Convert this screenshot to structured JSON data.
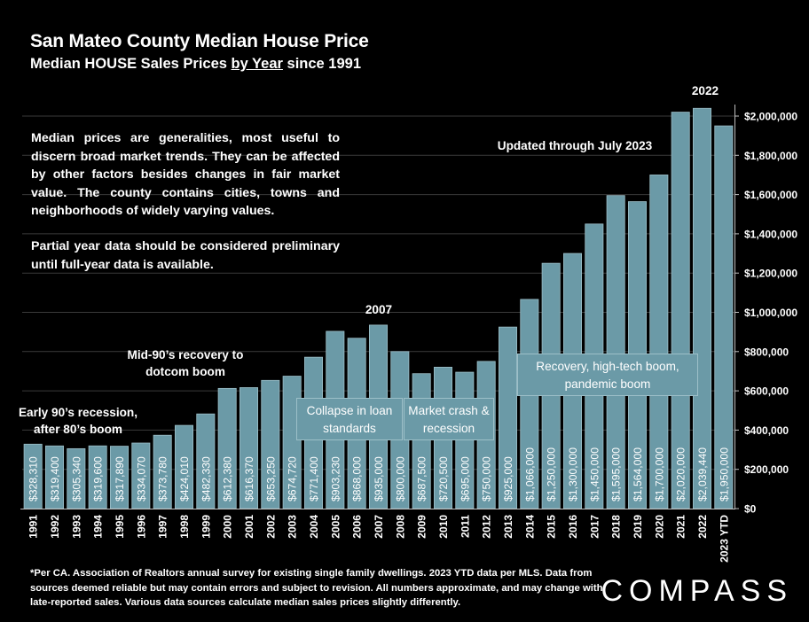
{
  "title": "San Mateo County Median House Price",
  "subtitle_prefix": "Median HOUSE Sales Prices ",
  "subtitle_underlined": "by Year",
  "subtitle_suffix": " since 1991",
  "notes": {
    "paragraph1": "Median prices are generalities, most useful to discern broad market trends. They can be affected by other factors besides changes in fair market value. The county contains cities, towns and neighborhoods of widely varying values.",
    "paragraph2": "Partial year data should be considered preliminary until full-year data is available.",
    "updated": "Updated through July 2023"
  },
  "annotations": {
    "early90s": "Early 90’s recession, after 80’s boom",
    "mid90s": "Mid-90’s recovery to dotcom boom",
    "label2007": "2007",
    "label2022": "2022",
    "collapse": "Collapse in loan standards",
    "crash": "Market crash & recession",
    "recovery": "Recovery, high-tech boom, pandemic boom"
  },
  "footnote": "*Per CA. Association of Realtors annual survey for existing single family dwellings. 2023 YTD data per MLS. Data from sources deemed reliable but may contain errors and subject to revision. All numbers approximate, and may change with late-reported sales. Various data sources calculate median sales prices slightly differently.",
  "logo": "COMPASS",
  "colors": {
    "bar": "#6b9aa7",
    "bar_edge": "#9dbfc8",
    "background": "#000000",
    "text": "#ffffff"
  },
  "chart_data": {
    "type": "bar",
    "categories": [
      "1991",
      "1992",
      "1993",
      "1994",
      "1995",
      "1996",
      "1997",
      "1998",
      "1999",
      "2000",
      "2001",
      "2002",
      "2003",
      "2004",
      "2005",
      "2006",
      "2007",
      "2008",
      "2009",
      "2010",
      "2011",
      "2012",
      "2013",
      "2014",
      "2015",
      "2016",
      "2017",
      "2018",
      "2019",
      "2020",
      "2021",
      "2022",
      "2023 YTD"
    ],
    "values": [
      328310,
      319400,
      305340,
      319600,
      317890,
      334070,
      373780,
      424010,
      482330,
      612380,
      616370,
      653250,
      674720,
      771400,
      903230,
      868000,
      935000,
      800000,
      687500,
      720500,
      695000,
      750000,
      925000,
      1066000,
      1250000,
      1300000,
      1450000,
      1595000,
      1564000,
      1700000,
      2020000,
      2039440,
      1950000
    ],
    "value_labels": [
      "$328,310",
      "$319,400",
      "$305,340",
      "$319,600",
      "$317,890",
      "$334,070",
      "$373,780",
      "$424,010",
      "$482,330",
      "$612,380",
      "$616,370",
      "$653,250",
      "$674,720",
      "$771,400",
      "$903,230",
      "$868,000",
      "$935,000",
      "$800,000",
      "$687,500",
      "$720,500",
      "$695,000",
      "$750,000",
      "$925,000",
      "$1,066,000",
      "$1,250,000",
      "$1,300,000",
      "$1,450,000",
      "$1,595,000",
      "$1,564,000",
      "$1,700,000",
      "$2,020,000",
      "$2,039,440",
      "$1,950,000"
    ],
    "ylim": [
      0,
      2000000
    ],
    "y_ticks": [
      0,
      200000,
      400000,
      600000,
      800000,
      1000000,
      1200000,
      1400000,
      1600000,
      1800000,
      2000000
    ],
    "y_tick_labels": [
      "$0",
      "$200,000",
      "$400,000",
      "$600,000",
      "$800,000",
      "$1,000,000",
      "$1,200,000",
      "$1,400,000",
      "$1,600,000",
      "$1,800,000",
      "$2,000,000"
    ],
    "y_axis_position": "right",
    "grid": true
  }
}
